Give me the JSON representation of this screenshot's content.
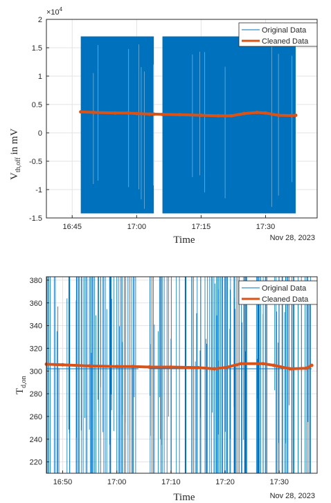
{
  "chart_data": [
    {
      "type": "line",
      "title": "",
      "exponent_label": "×10",
      "exponent_power": "4",
      "ylabel_main": "V",
      "ylabel_sub": "th,off",
      "ylabel_suffix": " in mV",
      "xlabel": "Time",
      "date_label": "Nov 28, 2023",
      "yticks": [
        {
          "v": 20000,
          "label": "2"
        },
        {
          "v": 15000,
          "label": "1.5"
        },
        {
          "v": 10000,
          "label": "1"
        },
        {
          "v": 5000,
          "label": "0.5"
        },
        {
          "v": 0,
          "label": "0"
        },
        {
          "v": -5000,
          "label": "-0.5"
        },
        {
          "v": -10000,
          "label": "-1"
        },
        {
          "v": -15000,
          "label": "-1.5"
        }
      ],
      "xticks": [
        {
          "t": "16:45",
          "label": "16:45"
        },
        {
          "t": "17:00",
          "label": "17:00"
        },
        {
          "t": "17:15",
          "label": "17:15"
        },
        {
          "t": "17:30",
          "label": "17:30"
        }
      ],
      "xlim": [
        "16:39",
        "17:42"
      ],
      "ylim": [
        -15000,
        20000
      ],
      "grid": true,
      "legend_position": "top-right",
      "series": [
        {
          "name": "Original Data",
          "color": "#0072BD",
          "style": "noise",
          "segments": [
            [
              "16:47",
              "17:04"
            ],
            [
              "17:06",
              "17:37"
            ]
          ],
          "max": 17000,
          "min": -14200
        },
        {
          "name": "Cleaned Data",
          "color": "#D95319",
          "x": [
            "16:47",
            "16:50",
            "16:55",
            "16:58",
            "17:00",
            "17:03",
            "17:04",
            "17:06",
            "17:10",
            "17:15",
            "17:19",
            "17:22",
            "17:25",
            "17:28",
            "17:30",
            "17:33",
            "17:36",
            "17:37"
          ],
          "y": [
            3700,
            3600,
            3500,
            3500,
            3400,
            3300,
            3300,
            3250,
            3200,
            3100,
            3000,
            3000,
            3400,
            3600,
            3500,
            3100,
            3050,
            3100
          ]
        }
      ]
    },
    {
      "type": "line",
      "title": "",
      "ylabel_main": "T",
      "ylabel_sub": "d,on",
      "xlabel": "Time",
      "date_label": "Nov 28, 2023",
      "yticks": [
        {
          "v": 380,
          "label": "380"
        },
        {
          "v": 360,
          "label": "360"
        },
        {
          "v": 340,
          "label": "340"
        },
        {
          "v": 320,
          "label": "320"
        },
        {
          "v": 300,
          "label": "300"
        },
        {
          "v": 280,
          "label": "280"
        },
        {
          "v": 260,
          "label": "260"
        },
        {
          "v": 240,
          "label": "240"
        },
        {
          "v": 220,
          "label": "220"
        }
      ],
      "xticks": [
        {
          "t": "16:50",
          "label": "16:50"
        },
        {
          "t": "17:00",
          "label": "17:00"
        },
        {
          "t": "17:10",
          "label": "17:10"
        },
        {
          "t": "17:20",
          "label": "17:20"
        },
        {
          "t": "17:30",
          "label": "17:30"
        }
      ],
      "xlim": [
        "16:47",
        "17:37"
      ],
      "ylim": [
        210,
        383
      ],
      "grid": true,
      "legend_position": "top-right",
      "series": [
        {
          "name": "Original Data",
          "color": "#0072BD",
          "style": "spikes",
          "segments": [
            [
              "16:47",
              "17:04"
            ],
            [
              "17:06",
              "17:36"
            ]
          ],
          "max": 383,
          "min": 210
        },
        {
          "name": "Cleaned Data",
          "color": "#D95319",
          "x": [
            "16:47",
            "16:50",
            "16:55",
            "17:00",
            "17:03",
            "17:06",
            "17:10",
            "17:15",
            "17:18",
            "17:20",
            "17:23",
            "17:27",
            "17:29",
            "17:32",
            "17:35",
            "17:36"
          ],
          "y": [
            306,
            305.5,
            304.5,
            304,
            304,
            303.5,
            303.5,
            303,
            302,
            303,
            306.5,
            306.5,
            305,
            302,
            302.5,
            305
          ]
        }
      ]
    }
  ]
}
